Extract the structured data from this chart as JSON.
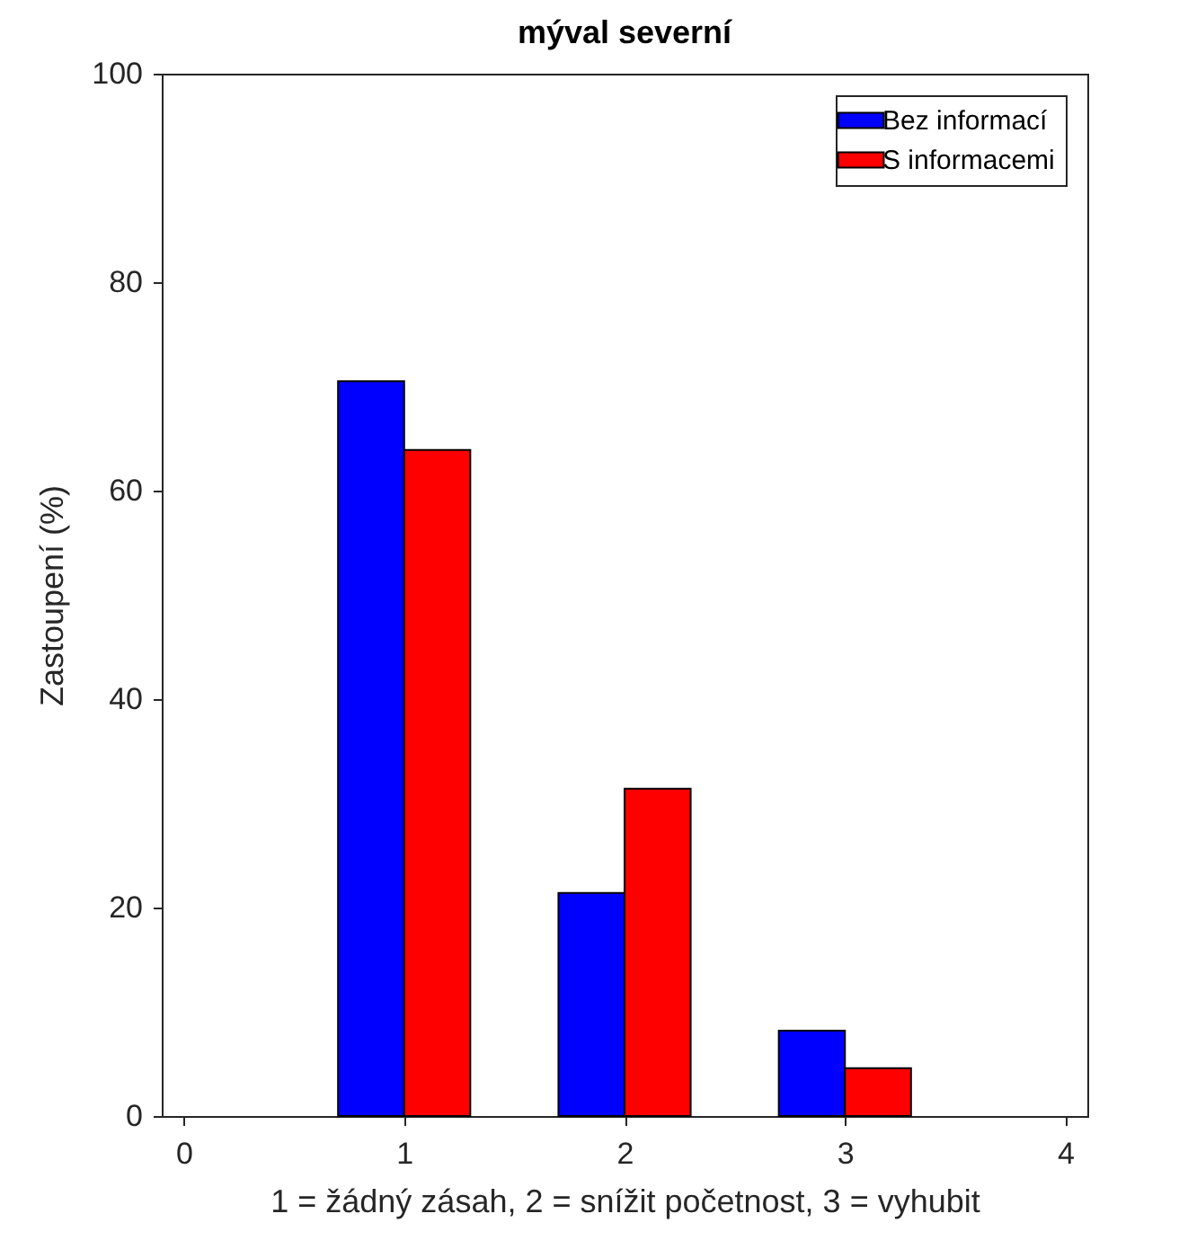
{
  "chart_data": {
    "type": "bar",
    "title": "mýval severní",
    "xlabel": "1 = žádný zásah, 2 = snížit početnost, 3 = vyhubit",
    "ylabel": "Zastoupení (%)",
    "x": [
      1,
      2,
      3
    ],
    "series": [
      {
        "name": "Bez informací",
        "color": "#0000ff",
        "values": [
          70.5,
          21.4,
          8.2
        ]
      },
      {
        "name": "S informacemi",
        "color": "#ff0000",
        "values": [
          63.9,
          31.4,
          4.6
        ]
      }
    ],
    "xlim": [
      -0.1,
      4.1
    ],
    "xticks": [
      0,
      1,
      2,
      3,
      4
    ],
    "ylim": [
      0,
      100
    ],
    "yticks": [
      0,
      20,
      40,
      60,
      80,
      100
    ],
    "grid": false,
    "legend": "top right"
  }
}
